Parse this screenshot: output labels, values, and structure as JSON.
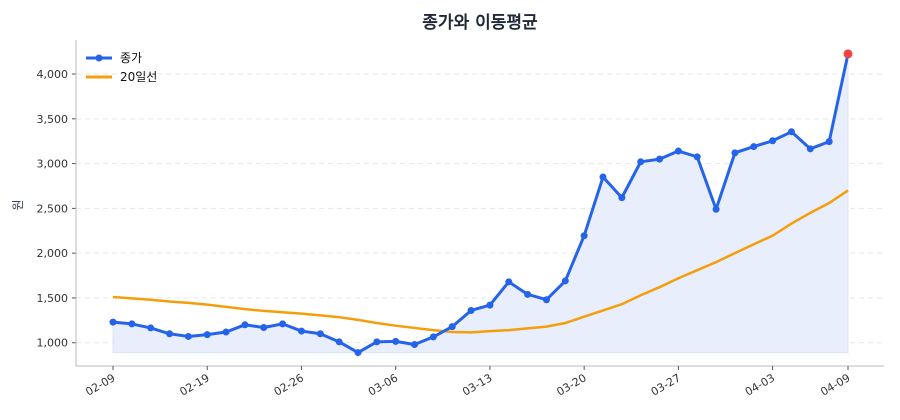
{
  "chart_data": {
    "type": "line",
    "title": "종가와 이동평균",
    "xlabel": "",
    "ylabel": "원",
    "ylim": [
      740,
      4380
    ],
    "yticks": [
      1000,
      1500,
      2000,
      2500,
      3000,
      3500,
      4000
    ],
    "ytick_labels": [
      "1,000",
      "1,500",
      "2,000",
      "2,500",
      "3,000",
      "3,500",
      "4,000"
    ],
    "grid": "horizontal dashed",
    "legend": "top-left",
    "x": [
      "02-09",
      "02-10",
      "02-11",
      "02-12",
      "02-13",
      "02-19",
      "02-20",
      "02-23",
      "02-24",
      "02-25",
      "02-26",
      "02-27",
      "03-03",
      "03-04",
      "03-05",
      "03-06",
      "03-09",
      "03-10",
      "03-11",
      "03-12",
      "03-13",
      "03-16",
      "03-17",
      "03-18",
      "03-19",
      "03-20",
      "03-23",
      "03-24",
      "03-25",
      "03-26",
      "03-27",
      "03-30",
      "03-31",
      "04-01",
      "04-02",
      "04-03",
      "04-06",
      "04-07",
      "04-08",
      "04-09"
    ],
    "xtick_labels": [
      "02-09",
      "02-19",
      "02-26",
      "03-06",
      "03-13",
      "03-20",
      "03-27",
      "04-03",
      "04-09"
    ],
    "series": [
      {
        "name": "종가",
        "color": "#2563eb",
        "marker": "circle",
        "fill": "#e8eefb",
        "values": [
          1230,
          1210,
          1165,
          1100,
          1070,
          1090,
          1120,
          1200,
          1170,
          1210,
          1130,
          1100,
          1010,
          890,
          1010,
          1015,
          980,
          1065,
          1180,
          1360,
          1420,
          1680,
          1540,
          1480,
          1690,
          2195,
          2850,
          2620,
          3020,
          3050,
          3140,
          3075,
          2490,
          3120,
          3190,
          3255,
          3355,
          3165,
          3245,
          4225
        ],
        "highlight_last_color": "#ef4444"
      },
      {
        "name": "20일선",
        "color": "#f59e0b",
        "values": [
          1510,
          1495,
          1480,
          1460,
          1445,
          1425,
          1400,
          1375,
          1355,
          1340,
          1325,
          1305,
          1285,
          1255,
          1220,
          1190,
          1165,
          1140,
          1120,
          1115,
          1130,
          1140,
          1160,
          1180,
          1220,
          1290,
          1360,
          1430,
          1530,
          1620,
          1720,
          1810,
          1900,
          2000,
          2100,
          2195,
          2330,
          2450,
          2560,
          2700
        ]
      }
    ]
  }
}
